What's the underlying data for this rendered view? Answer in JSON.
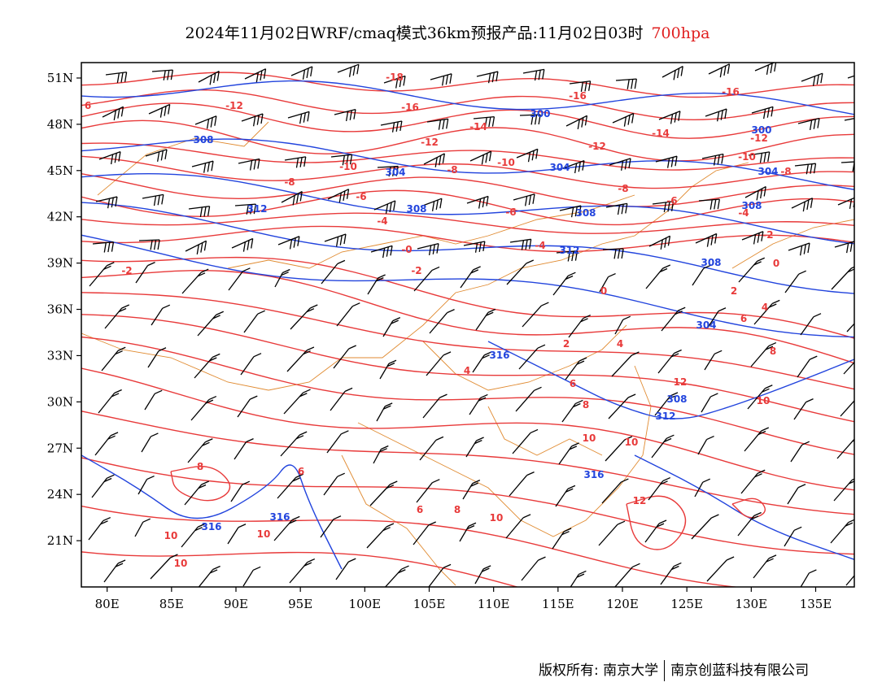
{
  "title": {
    "main": "2024年11月02日WRF/cmaq模式36km预报产品:11月02日03时",
    "level": "700hpa"
  },
  "axes": {
    "lat_labels": [
      "51N",
      "48N",
      "45N",
      "42N",
      "39N",
      "36N",
      "33N",
      "30N",
      "27N",
      "24N",
      "21N"
    ],
    "lon_labels": [
      "80E",
      "85E",
      "90E",
      "95E",
      "100E",
      "105E",
      "110E",
      "115E",
      "120E",
      "125E",
      "130E",
      "135E"
    ]
  },
  "colors": {
    "temperature": "#e83a3a",
    "geopotential": "#2244dd",
    "boundary": "#e08a30",
    "barb": "#000000"
  },
  "chart_data": {
    "type": "map",
    "projection": "lat-lon",
    "lon_range": [
      78,
      138
    ],
    "lat_range": [
      18,
      52
    ],
    "layers": [
      "temperature contours (red, °C)",
      "geopotential height contours (blue, dagpm)",
      "wind barbs (black)",
      "provincial boundaries (orange)"
    ],
    "temperature_contour_labels": [
      "-18",
      "-16",
      "-14",
      "-12",
      "-10",
      "-8",
      "-6",
      "-4",
      "-2",
      "0",
      "2",
      "4",
      "6",
      "8",
      "10",
      "12"
    ],
    "height_contour_labels": [
      "300",
      "304",
      "308",
      "312",
      "316"
    ],
    "grid": false
  },
  "footer": {
    "left": "版权所有: 南京大学",
    "right": "南京创蓝科技有限公司"
  }
}
